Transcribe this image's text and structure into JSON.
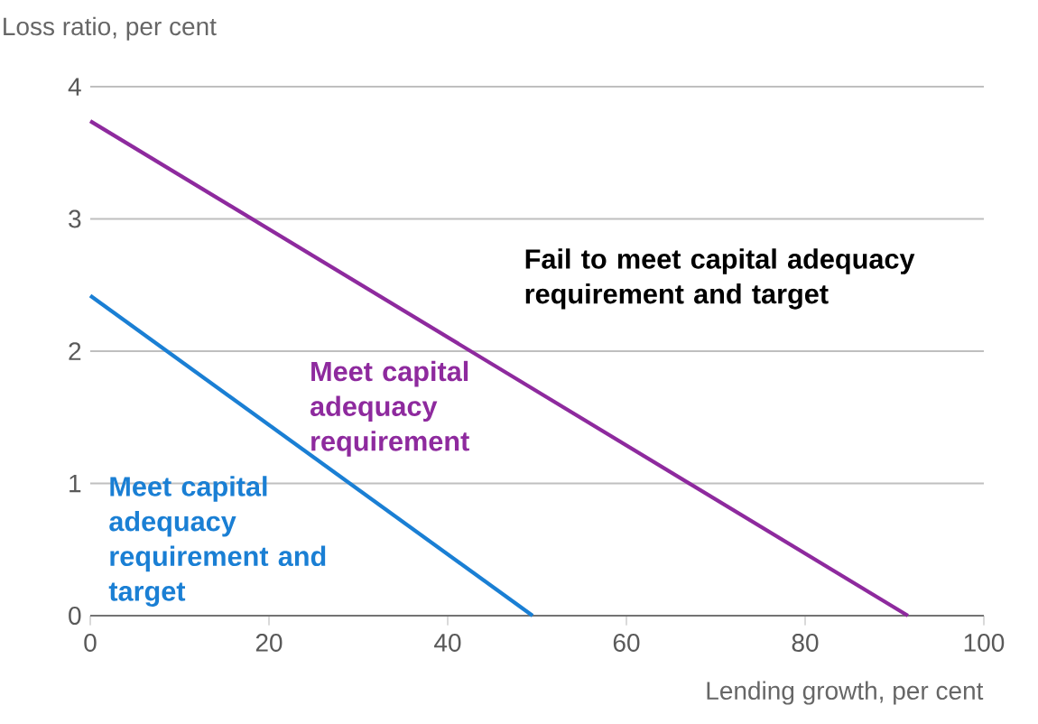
{
  "chart_data": {
    "type": "line",
    "xlabel": "Lending growth, per cent",
    "ylabel": "Loss ratio, per cent",
    "xlim": [
      0,
      100
    ],
    "ylim": [
      0,
      4
    ],
    "xticks": [
      0,
      20,
      40,
      60,
      80,
      100
    ],
    "yticks": [
      0,
      1,
      2,
      3,
      4
    ],
    "grid": "y",
    "legend": false,
    "series": [
      {
        "name": "Meet capital adequacy requirement",
        "color": "#8e2a9e",
        "x": [
          0,
          91.5
        ],
        "values": [
          3.74,
          0
        ]
      },
      {
        "name": "Meet capital adequacy requirement and target",
        "color": "#1a7fd4",
        "x": [
          0,
          49.5
        ],
        "values": [
          2.42,
          0
        ]
      }
    ],
    "annotations": [
      "Fail to meet capital adequacy requirement and target"
    ]
  }
}
